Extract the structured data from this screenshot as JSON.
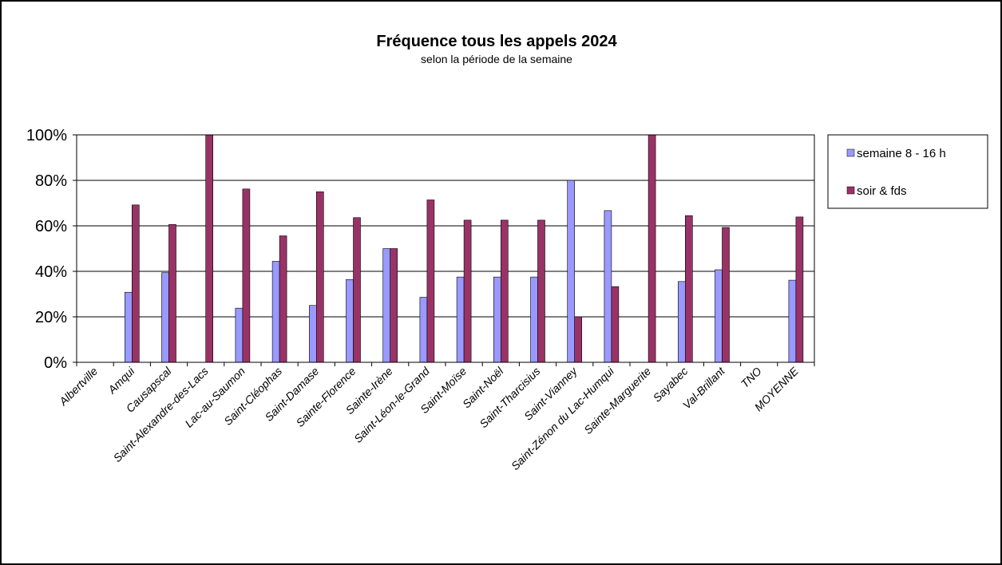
{
  "chart_data": {
    "type": "bar",
    "title": "Fréquence tous les appels 2024",
    "subtitle": "selon la période de la semaine",
    "xlabel": "",
    "ylabel": "",
    "ylim": [
      0,
      100
    ],
    "y_ticks": [
      "0%",
      "20%",
      "40%",
      "60%",
      "80%",
      "100%"
    ],
    "grid": "horizontal",
    "legend_position": "right",
    "categories": [
      "Albertville",
      "Amqui",
      "Causapscal",
      "Saint-Alexandre-des-Lacs",
      "Lac-au-Saumon",
      "Saint-Cléophas",
      "Saint-Damase",
      "Sainte-Florence",
      "Sainte-Irène",
      "Saint-Léon-le-Grand",
      "Saint-Moïse",
      "Saint-Noël",
      "Saint-Tharcisius",
      "Saint-Vianney",
      "Saint-Zénon du Lac-Humqui",
      "Sainte-Marguerite",
      "Sayabec",
      "Val-Brillant",
      "TNO",
      "MOYENNE"
    ],
    "series": [
      {
        "name": "semaine 8 - 16 h",
        "color": "#9999ff",
        "values": [
          null,
          30.8,
          39.4,
          0,
          23.8,
          44.4,
          25,
          36.4,
          50,
          28.6,
          37.5,
          37.5,
          37.5,
          80,
          66.7,
          0,
          35.5,
          40.7,
          null,
          36.1
        ]
      },
      {
        "name": "soir & fds",
        "color": "#993366",
        "values": [
          null,
          69.2,
          60.6,
          100,
          76.2,
          55.6,
          75,
          63.6,
          50,
          71.4,
          62.5,
          62.5,
          62.5,
          20,
          33.3,
          100,
          64.5,
          59.3,
          null,
          63.9
        ]
      }
    ]
  }
}
